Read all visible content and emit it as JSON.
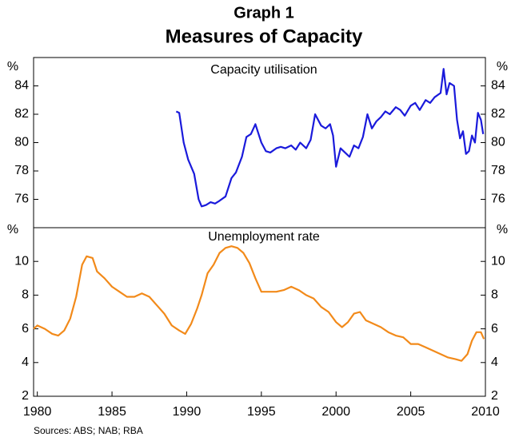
{
  "title": "Graph 1",
  "subtitle": "Measures of Capacity",
  "source": "Sources: ABS; NAB; RBA",
  "chart_data": [
    {
      "type": "line",
      "title": "Capacity utilisation",
      "y_unit": "%",
      "color": "#1a1adb",
      "xlim": [
        1979.75,
        2010
      ],
      "ylim": [
        74,
        86
      ],
      "yticks": [
        76,
        78,
        80,
        82,
        84
      ],
      "x": [
        1989.3,
        1989.5,
        1989.8,
        1990.1,
        1990.5,
        1990.8,
        1991.0,
        1991.3,
        1991.6,
        1991.9,
        1992.2,
        1992.6,
        1993.0,
        1993.3,
        1993.7,
        1994.0,
        1994.3,
        1994.6,
        1995.0,
        1995.3,
        1995.6,
        1996.0,
        1996.3,
        1996.6,
        1997.0,
        1997.3,
        1997.6,
        1998.0,
        1998.3,
        1998.6,
        1999.0,
        1999.3,
        1999.6,
        1999.8,
        2000.0,
        2000.3,
        2000.6,
        2000.9,
        2001.2,
        2001.5,
        2001.8,
        2002.1,
        2002.4,
        2002.7,
        2003.0,
        2003.3,
        2003.6,
        2004.0,
        2004.3,
        2004.6,
        2005.0,
        2005.3,
        2005.6,
        2006.0,
        2006.3,
        2006.6,
        2007.0,
        2007.2,
        2007.4,
        2007.6,
        2007.9,
        2008.1,
        2008.3,
        2008.5,
        2008.7,
        2008.9,
        2009.1,
        2009.3,
        2009.5,
        2009.7,
        2009.85
      ],
      "values": [
        82.2,
        82.1,
        80.0,
        78.8,
        77.8,
        76.0,
        75.5,
        75.6,
        75.8,
        75.7,
        75.9,
        76.2,
        77.5,
        77.9,
        79.0,
        80.4,
        80.6,
        81.3,
        80.0,
        79.4,
        79.3,
        79.6,
        79.7,
        79.6,
        79.8,
        79.5,
        80.0,
        79.6,
        80.2,
        82.0,
        81.2,
        81.0,
        81.3,
        80.5,
        78.3,
        79.6,
        79.3,
        79.0,
        79.8,
        79.6,
        80.4,
        82.0,
        81.0,
        81.5,
        81.8,
        82.2,
        82.0,
        82.5,
        82.3,
        81.9,
        82.6,
        82.8,
        82.3,
        83.0,
        82.8,
        83.2,
        83.5,
        85.2,
        83.4,
        84.2,
        84.0,
        81.6,
        80.3,
        80.8,
        79.2,
        79.4,
        80.5,
        80.0,
        82.1,
        81.6,
        80.6
      ]
    },
    {
      "type": "line",
      "title": "Unemployment rate",
      "y_unit": "%",
      "color": "#f28a1a",
      "xlim": [
        1979.75,
        2010
      ],
      "ylim": [
        2,
        12
      ],
      "yticks": [
        2,
        4,
        6,
        8,
        10
      ],
      "xticks": [
        1980,
        1985,
        1990,
        1995,
        2000,
        2005,
        2010
      ],
      "x": [
        1979.75,
        1980.0,
        1980.5,
        1981.0,
        1981.4,
        1981.8,
        1982.2,
        1982.6,
        1983.0,
        1983.3,
        1983.7,
        1984.0,
        1984.5,
        1985.0,
        1985.5,
        1986.0,
        1986.5,
        1987.0,
        1987.5,
        1988.0,
        1988.5,
        1989.0,
        1989.5,
        1989.9,
        1990.3,
        1990.7,
        1991.0,
        1991.4,
        1991.8,
        1992.2,
        1992.6,
        1993.0,
        1993.4,
        1993.8,
        1994.2,
        1994.6,
        1995.0,
        1995.5,
        1996.0,
        1996.5,
        1997.0,
        1997.5,
        1998.0,
        1998.5,
        1999.0,
        1999.5,
        2000.0,
        2000.4,
        2000.8,
        2001.2,
        2001.6,
        2002.0,
        2002.5,
        2003.0,
        2003.5,
        2004.0,
        2004.5,
        2005.0,
        2005.5,
        2006.0,
        2006.5,
        2007.0,
        2007.5,
        2008.0,
        2008.4,
        2008.8,
        2009.1,
        2009.4,
        2009.7,
        2009.9
      ],
      "values": [
        6.0,
        6.2,
        6.0,
        5.7,
        5.6,
        5.9,
        6.6,
        7.9,
        9.8,
        10.3,
        10.2,
        9.4,
        9.0,
        8.5,
        8.2,
        7.9,
        7.9,
        8.1,
        7.9,
        7.4,
        6.9,
        6.2,
        5.9,
        5.7,
        6.3,
        7.2,
        8.0,
        9.3,
        9.8,
        10.5,
        10.8,
        10.9,
        10.8,
        10.5,
        9.9,
        9.0,
        8.2,
        8.2,
        8.2,
        8.3,
        8.5,
        8.3,
        8.0,
        7.8,
        7.3,
        7.0,
        6.4,
        6.1,
        6.4,
        6.9,
        7.0,
        6.5,
        6.3,
        6.1,
        5.8,
        5.6,
        5.5,
        5.1,
        5.1,
        4.9,
        4.7,
        4.5,
        4.3,
        4.2,
        4.1,
        4.5,
        5.3,
        5.8,
        5.8,
        5.4
      ]
    }
  ]
}
